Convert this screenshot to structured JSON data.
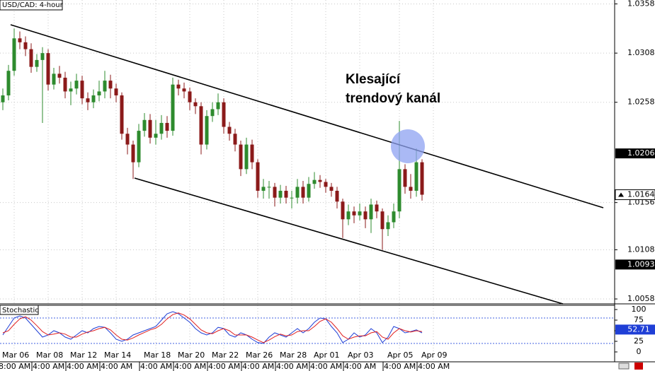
{
  "chart_data": [
    {
      "type": "candlestick",
      "title": "USD/CAD: 4-hour",
      "annotation": [
        "Klesající",
        "trendový kanál"
      ],
      "categories": [
        null,
        null,
        {
          "date": "Mar 06",
          "time": "8:00 AM"
        },
        null,
        null,
        null,
        null,
        null,
        {
          "date": "Mar 08",
          "time": "4:00 AM"
        },
        null,
        null,
        null,
        null,
        null,
        {
          "date": "Mar 12",
          "time": "4:00 AM"
        },
        null,
        null,
        null,
        null,
        null,
        {
          "date": "Mar 14",
          "time": "4:00 AM"
        },
        null,
        null,
        null,
        null,
        null,
        null,
        {
          "date": "Mar 18",
          "time": "4:00 AM"
        },
        null,
        null,
        null,
        null,
        null,
        {
          "date": "Mar 20",
          "time": "4:00 AM"
        },
        null,
        null,
        null,
        null,
        null,
        {
          "date": "Mar 22",
          "time": "4:00 AM"
        },
        null,
        null,
        null,
        null,
        null,
        {
          "date": "Mar 26",
          "time": "4:00 AM"
        },
        null,
        null,
        null,
        null,
        null,
        {
          "date": "Mar 28",
          "time": "4:00 AM"
        },
        null,
        null,
        null,
        null,
        null,
        {
          "date": "Apr 01",
          "time": "4:00 AM"
        },
        null,
        null,
        null,
        null,
        null,
        {
          "date": "Apr 03",
          "time": "4:00 AM"
        },
        null,
        null,
        null,
        null,
        null,
        null,
        {
          "date": "Apr 05",
          "time": "4:00 AM"
        },
        null,
        null,
        null,
        null,
        null,
        {
          "date": "Apr 09",
          "time": "4:00 AM"
        }
      ],
      "open": [
        1.0258,
        1.0265,
        1.029,
        1.0323,
        1.0319,
        1.0312,
        1.0294,
        1.0301,
        1.0308,
        1.0276,
        1.0287,
        1.0283,
        1.0269,
        1.0272,
        1.028,
        1.0262,
        1.0258,
        1.0265,
        1.0269,
        1.028,
        1.0272,
        1.0265,
        1.0226,
        1.0215,
        1.0197,
        1.0229,
        1.024,
        1.0222,
        1.0226,
        1.0237,
        1.0229,
        1.0276,
        1.0272,
        1.0269,
        1.0258,
        1.0254,
        1.0215,
        1.0244,
        1.0251,
        1.0258,
        1.0233,
        1.0226,
        1.0215,
        1.019,
        1.0215,
        1.0197,
        1.0168,
        1.0172,
        1.0172,
        1.0161,
        1.0168,
        1.0161,
        1.0161,
        1.0172,
        1.0161,
        1.0175,
        1.0179,
        1.0177,
        1.0172,
        1.0168,
        1.0157,
        1.0139,
        1.0147,
        1.0143,
        1.0147,
        1.0139,
        1.0154,
        1.0147,
        1.0129,
        1.0136,
        1.0147,
        1.019,
        1.0172,
        1.0168,
        1.0197,
        null,
        null
      ],
      "high": [
        1.0272,
        1.0296,
        1.0333,
        1.033,
        1.0325,
        1.0318,
        1.0307,
        1.0314,
        1.0312,
        1.0293,
        1.0295,
        1.0289,
        1.0279,
        1.0287,
        1.0285,
        1.0268,
        1.0271,
        1.028,
        1.029,
        1.0286,
        1.0277,
        1.0268,
        1.0232,
        1.0219,
        1.0236,
        1.0247,
        1.0246,
        1.024,
        1.0245,
        1.0244,
        1.0283,
        1.0281,
        1.0278,
        1.0273,
        1.0262,
        1.0258,
        1.025,
        1.0258,
        1.0267,
        1.0262,
        1.0238,
        1.0231,
        1.0219,
        1.0222,
        1.022,
        1.02,
        1.018,
        1.0178,
        1.0176,
        1.0174,
        1.0173,
        1.0168,
        1.018,
        1.0178,
        1.0182,
        1.0187,
        1.0184,
        1.018,
        1.0176,
        1.0172,
        1.016,
        1.0154,
        1.0152,
        1.0155,
        1.0152,
        1.016,
        1.0158,
        1.015,
        1.0143,
        1.0155,
        1.0239,
        1.0195,
        1.0185,
        1.0211,
        1.02,
        null,
        null
      ],
      "low": [
        1.025,
        1.026,
        1.0285,
        1.0312,
        1.0305,
        1.0288,
        1.0289,
        1.0237,
        1.027,
        1.0271,
        1.0277,
        1.0262,
        1.0255,
        1.0266,
        1.0256,
        1.025,
        1.0252,
        1.0259,
        1.0262,
        1.0262,
        1.0258,
        1.022,
        1.0205,
        1.018,
        1.0192,
        1.0223,
        1.0216,
        1.0215,
        1.022,
        1.0222,
        1.0224,
        1.0265,
        1.0262,
        1.025,
        1.0246,
        1.0205,
        1.021,
        1.0238,
        1.0245,
        1.0226,
        1.0219,
        1.0208,
        1.0183,
        1.0185,
        1.019,
        1.0161,
        1.016,
        1.016,
        1.0152,
        1.0155,
        1.0155,
        1.015,
        1.0155,
        1.0155,
        1.0157,
        1.017,
        1.0171,
        1.0166,
        1.0162,
        1.015,
        1.012,
        1.0133,
        1.0135,
        1.0138,
        1.013,
        1.0125,
        1.014,
        1.0108,
        1.0122,
        1.013,
        1.014,
        1.0165,
        1.016,
        1.0162,
        1.0158,
        null,
        null
      ],
      "close": [
        1.0265,
        1.029,
        1.0323,
        1.0319,
        1.0312,
        1.0294,
        1.0301,
        1.0308,
        1.0276,
        1.0287,
        1.0283,
        1.0269,
        1.0272,
        1.028,
        1.0262,
        1.0258,
        1.0265,
        1.0269,
        1.028,
        1.0272,
        1.0265,
        1.0226,
        1.0215,
        1.0197,
        1.0229,
        1.024,
        1.0222,
        1.0226,
        1.0237,
        1.0229,
        1.0276,
        1.0272,
        1.0269,
        1.0258,
        1.0254,
        1.0215,
        1.0244,
        1.0251,
        1.0258,
        1.0233,
        1.0226,
        1.0215,
        1.019,
        1.0215,
        1.0197,
        1.0168,
        1.0172,
        1.0172,
        1.0161,
        1.0168,
        1.0161,
        1.0161,
        1.0172,
        1.0161,
        1.0175,
        1.0179,
        1.0177,
        1.0172,
        1.0168,
        1.0157,
        1.0139,
        1.0147,
        1.0143,
        1.0147,
        1.0139,
        1.0154,
        1.0147,
        1.0129,
        1.0136,
        1.0147,
        1.019,
        1.0172,
        1.0168,
        1.0197,
        1.0164,
        null,
        null
      ],
      "up_color": "#2e8b2e",
      "down_color": "#8b1a1a",
      "ylim": [
        1.0053,
        1.0362
      ],
      "yticks": [
        1.0358,
        1.0308,
        1.0258,
        1.0156,
        1.0108,
        1.0058
      ],
      "level_labels": [
        1.0206,
        1.0093
      ],
      "last_price": 1.0164,
      "grid": true
    },
    {
      "type": "line",
      "title": "Stochastic",
      "series": [
        {
          "color": "#1f3fd6",
          "values": [
            40,
            60,
            80,
            85,
            80,
            65,
            50,
            35,
            40,
            50,
            45,
            35,
            30,
            40,
            50,
            45,
            55,
            60,
            58,
            45,
            30,
            25,
            30,
            40,
            45,
            50,
            55,
            60,
            75,
            90,
            95,
            90,
            80,
            70,
            55,
            45,
            40,
            45,
            58,
            55,
            40,
            35,
            45,
            40,
            30,
            22,
            20,
            35,
            45,
            40,
            35,
            45,
            55,
            45,
            55,
            70,
            80,
            78,
            60,
            45,
            22,
            30,
            45,
            35,
            40,
            55,
            45,
            22,
            35,
            60,
            55,
            45,
            48,
            52,
            45,
            null,
            null
          ]
        },
        {
          "color": "#e02020",
          "values": [
            45,
            50,
            65,
            78,
            83,
            75,
            62,
            48,
            40,
            42,
            45,
            42,
            35,
            35,
            42,
            47,
            50,
            55,
            58,
            52,
            40,
            30,
            28,
            33,
            40,
            46,
            52,
            56,
            65,
            78,
            88,
            92,
            87,
            78,
            65,
            52,
            45,
            43,
            50,
            55,
            50,
            40,
            40,
            40,
            35,
            28,
            22,
            28,
            36,
            42,
            38,
            40,
            48,
            50,
            50,
            60,
            72,
            78,
            70,
            55,
            38,
            30,
            35,
            38,
            38,
            45,
            48,
            35,
            30,
            45,
            55,
            50,
            47,
            50,
            48,
            null,
            null
          ]
        }
      ],
      "levels": [
        80,
        20
      ],
      "ylim": [
        -20,
        110
      ],
      "yticks": [
        100,
        75,
        50,
        25,
        0
      ],
      "last_value": 52.71
    }
  ]
}
